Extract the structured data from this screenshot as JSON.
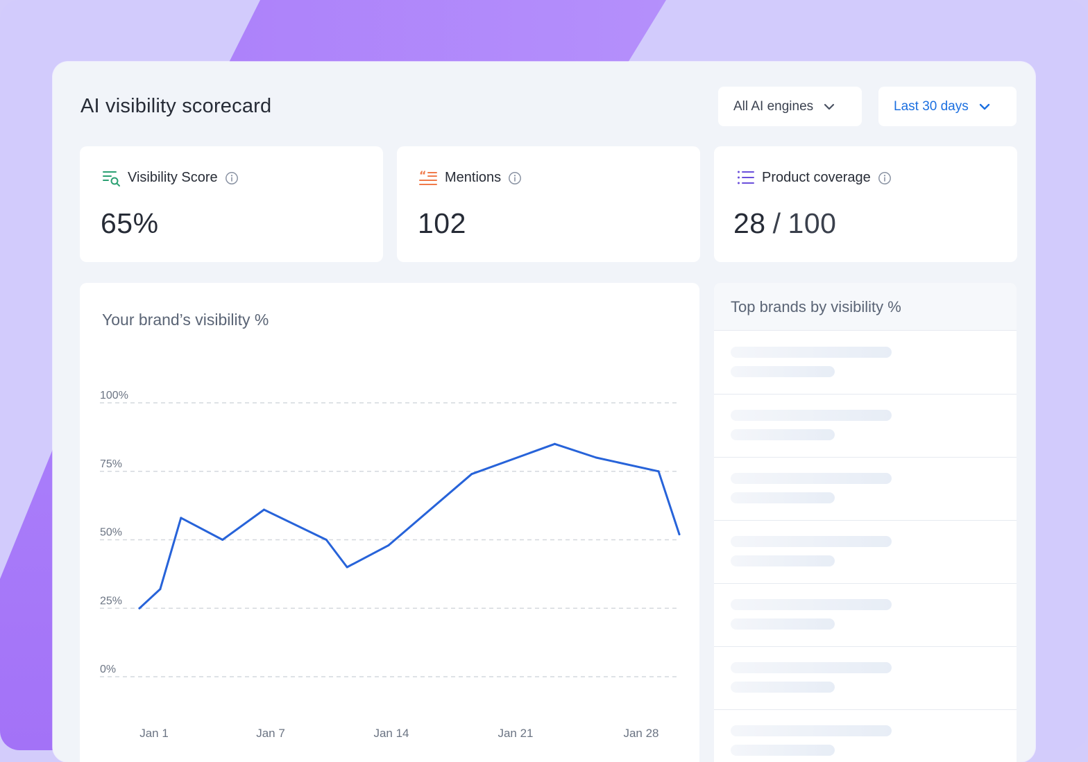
{
  "header": {
    "title": "AI visibility scorecard",
    "engines_label": "All AI engines",
    "range_label": "Last 30 days"
  },
  "kpis": [
    {
      "label": "Visibility Score",
      "icon": "visibility-search-icon",
      "value": "65%"
    },
    {
      "label": "Mentions",
      "icon": "quote-icon",
      "value": "102"
    },
    {
      "label": "Product coverage",
      "icon": "list-icon",
      "value": "28",
      "separator": "/",
      "total": "100"
    }
  ],
  "chart": {
    "title": "Your brand’s visibility %"
  },
  "chart_data": {
    "type": "line",
    "title": "Your brand’s visibility %",
    "xlabel": "",
    "ylabel": "",
    "ylim": [
      0,
      100
    ],
    "yticks": [
      "0%",
      "25%",
      "50%",
      "75%",
      "100%"
    ],
    "xticks": [
      "Jan 1",
      "Jan 7",
      "Jan 14",
      "Jan 21",
      "Jan 28"
    ],
    "grid": true,
    "series": [
      {
        "x": [
          1,
          2,
          3,
          5,
          7,
          10,
          11,
          13,
          17,
          21,
          23,
          26,
          27
        ],
        "y": [
          25,
          32,
          58,
          50,
          61,
          50,
          40,
          48,
          74,
          85,
          80,
          75,
          52
        ]
      }
    ],
    "colors": {
      "line": "#2763d9",
      "grid": "#d4d8de"
    }
  },
  "side": {
    "title": "Top brands by visibility %",
    "rows": 7
  },
  "colors": {
    "accent": "#1b6fe0",
    "visibility_icon": "#2ba072",
    "mentions_icon": "#f07a4a",
    "coverage_icon": "#6a4fdb"
  }
}
